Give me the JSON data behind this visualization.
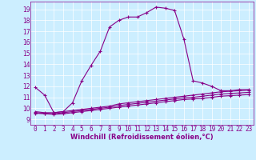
{
  "xlabel": "Windchill (Refroidissement éolien,°C)",
  "background_color": "#cceeff",
  "line_color": "#880088",
  "x_ticks": [
    0,
    1,
    2,
    3,
    4,
    5,
    6,
    7,
    8,
    9,
    10,
    11,
    12,
    13,
    14,
    15,
    16,
    17,
    18,
    19,
    20,
    21,
    22,
    23
  ],
  "ylim": [
    8.5,
    19.7
  ],
  "xlim": [
    -0.5,
    23.5
  ],
  "y_ticks": [
    9,
    10,
    11,
    12,
    13,
    14,
    15,
    16,
    17,
    18,
    19
  ],
  "series": [
    [
      11.9,
      11.2,
      9.6,
      9.7,
      10.5,
      12.5,
      13.9,
      15.2,
      17.4,
      18.0,
      18.3,
      18.3,
      18.7,
      19.2,
      19.1,
      18.9,
      16.3,
      12.5,
      12.3,
      12.0,
      11.6,
      11.6,
      11.7,
      11.7
    ],
    [
      9.7,
      9.6,
      9.6,
      9.7,
      9.8,
      9.9,
      10.0,
      10.1,
      10.2,
      10.4,
      10.5,
      10.6,
      10.7,
      10.8,
      10.9,
      11.0,
      11.1,
      11.2,
      11.3,
      11.4,
      11.5,
      11.55,
      11.6,
      11.65
    ],
    [
      9.6,
      9.55,
      9.5,
      9.6,
      9.7,
      9.8,
      9.9,
      10.0,
      10.1,
      10.25,
      10.35,
      10.45,
      10.55,
      10.65,
      10.75,
      10.85,
      10.95,
      11.0,
      11.1,
      11.2,
      11.3,
      11.35,
      11.4,
      11.45
    ],
    [
      9.55,
      9.5,
      9.45,
      9.5,
      9.6,
      9.7,
      9.8,
      9.9,
      10.0,
      10.1,
      10.2,
      10.3,
      10.4,
      10.5,
      10.6,
      10.7,
      10.8,
      10.85,
      10.9,
      11.0,
      11.1,
      11.15,
      11.2,
      11.25
    ]
  ],
  "xlabel_fontsize": 6,
  "tick_fontsize": 5.5
}
